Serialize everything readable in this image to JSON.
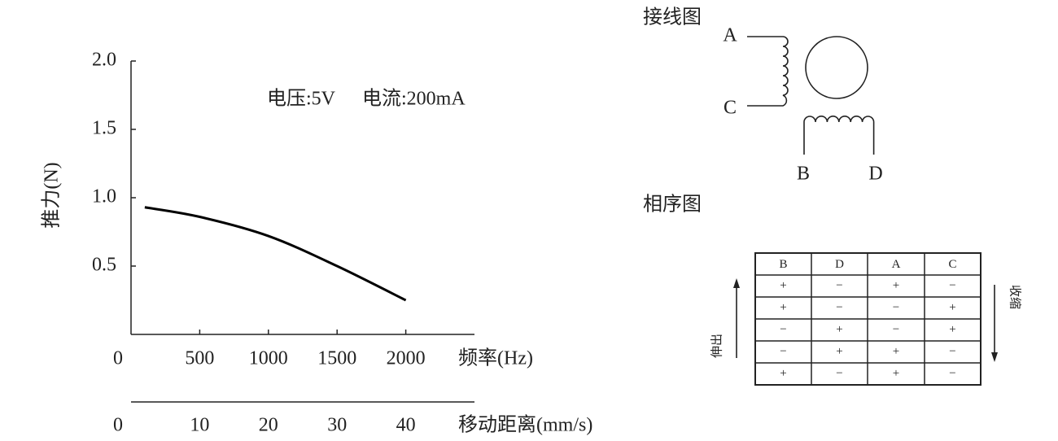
{
  "chart_data": {
    "type": "line",
    "y_label": "推力(N)",
    "x_label": "频率(Hz)",
    "x2_label": "移动距离(mm/s)",
    "annotations": [
      "电压:5V",
      "电流:200mA"
    ],
    "x": [
      100,
      500,
      1000,
      1500,
      2000
    ],
    "values": [
      0.93,
      0.86,
      0.72,
      0.5,
      0.25
    ],
    "color": "#000000",
    "xlim": [
      0,
      2500
    ],
    "xticks": [
      0,
      500,
      1000,
      1500,
      2000
    ],
    "x2lim": [
      0,
      50
    ],
    "x2ticks": [
      0,
      10,
      20,
      30,
      40
    ],
    "ylim": [
      0,
      2
    ],
    "yticks": [
      {
        "value": 0.5,
        "label": "0.5"
      },
      {
        "value": 1,
        "label": "1.0"
      },
      {
        "value": 1.5,
        "label": "1.5"
      },
      {
        "value": 2,
        "label": "2.0"
      }
    ]
  },
  "diagram": {
    "title": "接线图",
    "labels": [
      "A",
      "C",
      "B",
      "D"
    ]
  },
  "table": {
    "title": "相序图",
    "header": [
      "B",
      "D",
      "A",
      "C"
    ],
    "rows": [
      [
        "+",
        "−",
        "+",
        "−"
      ],
      [
        "+",
        "−",
        "−",
        "+"
      ],
      [
        "−",
        "+",
        "−",
        "+"
      ],
      [
        "−",
        "+",
        "+",
        "−"
      ],
      [
        "+",
        "−",
        "+",
        "−"
      ]
    ],
    "up_label": "伸出",
    "down_label": "收缩"
  }
}
